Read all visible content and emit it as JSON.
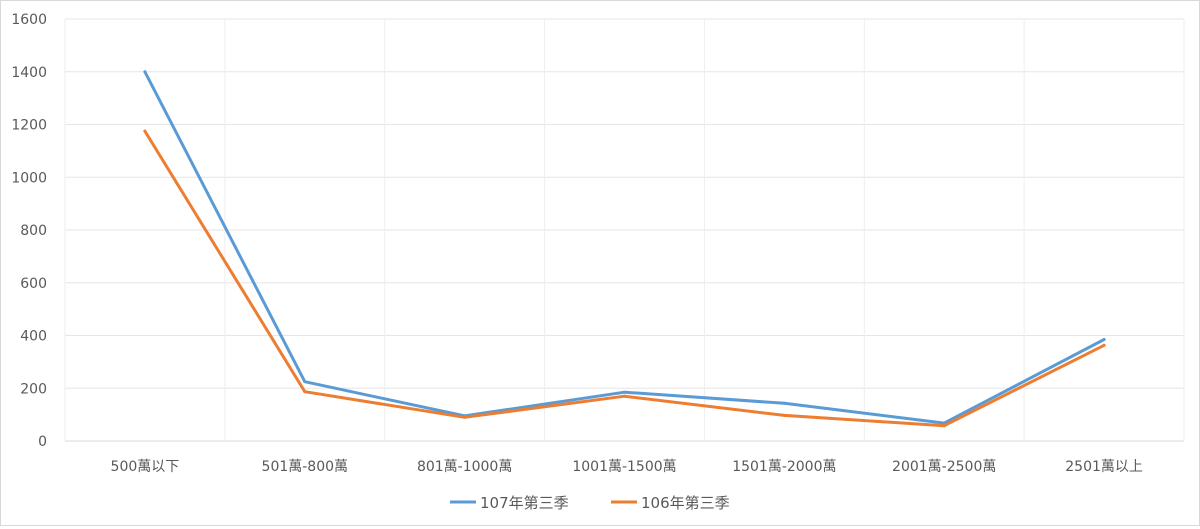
{
  "chart_data": {
    "type": "line",
    "categories": [
      "500萬以下",
      "501萬-800萬",
      "801萬-1000萬",
      "1001萬-1500萬",
      "1501萬-2000萬",
      "2001萬-2500萬",
      "2501萬以上"
    ],
    "series": [
      {
        "name": "107年第三季",
        "color": "#5b9bd5",
        "values": [
          1400,
          225,
          95,
          185,
          143,
          68,
          385
        ]
      },
      {
        "name": "106年第三季",
        "color": "#ed7d31",
        "values": [
          1175,
          187,
          90,
          170,
          97,
          58,
          363
        ]
      }
    ],
    "ylim": [
      0,
      1600
    ],
    "yticks": [
      0,
      200,
      400,
      600,
      800,
      1000,
      1200,
      1400,
      1600
    ],
    "grid": true,
    "legend": "bottom"
  }
}
